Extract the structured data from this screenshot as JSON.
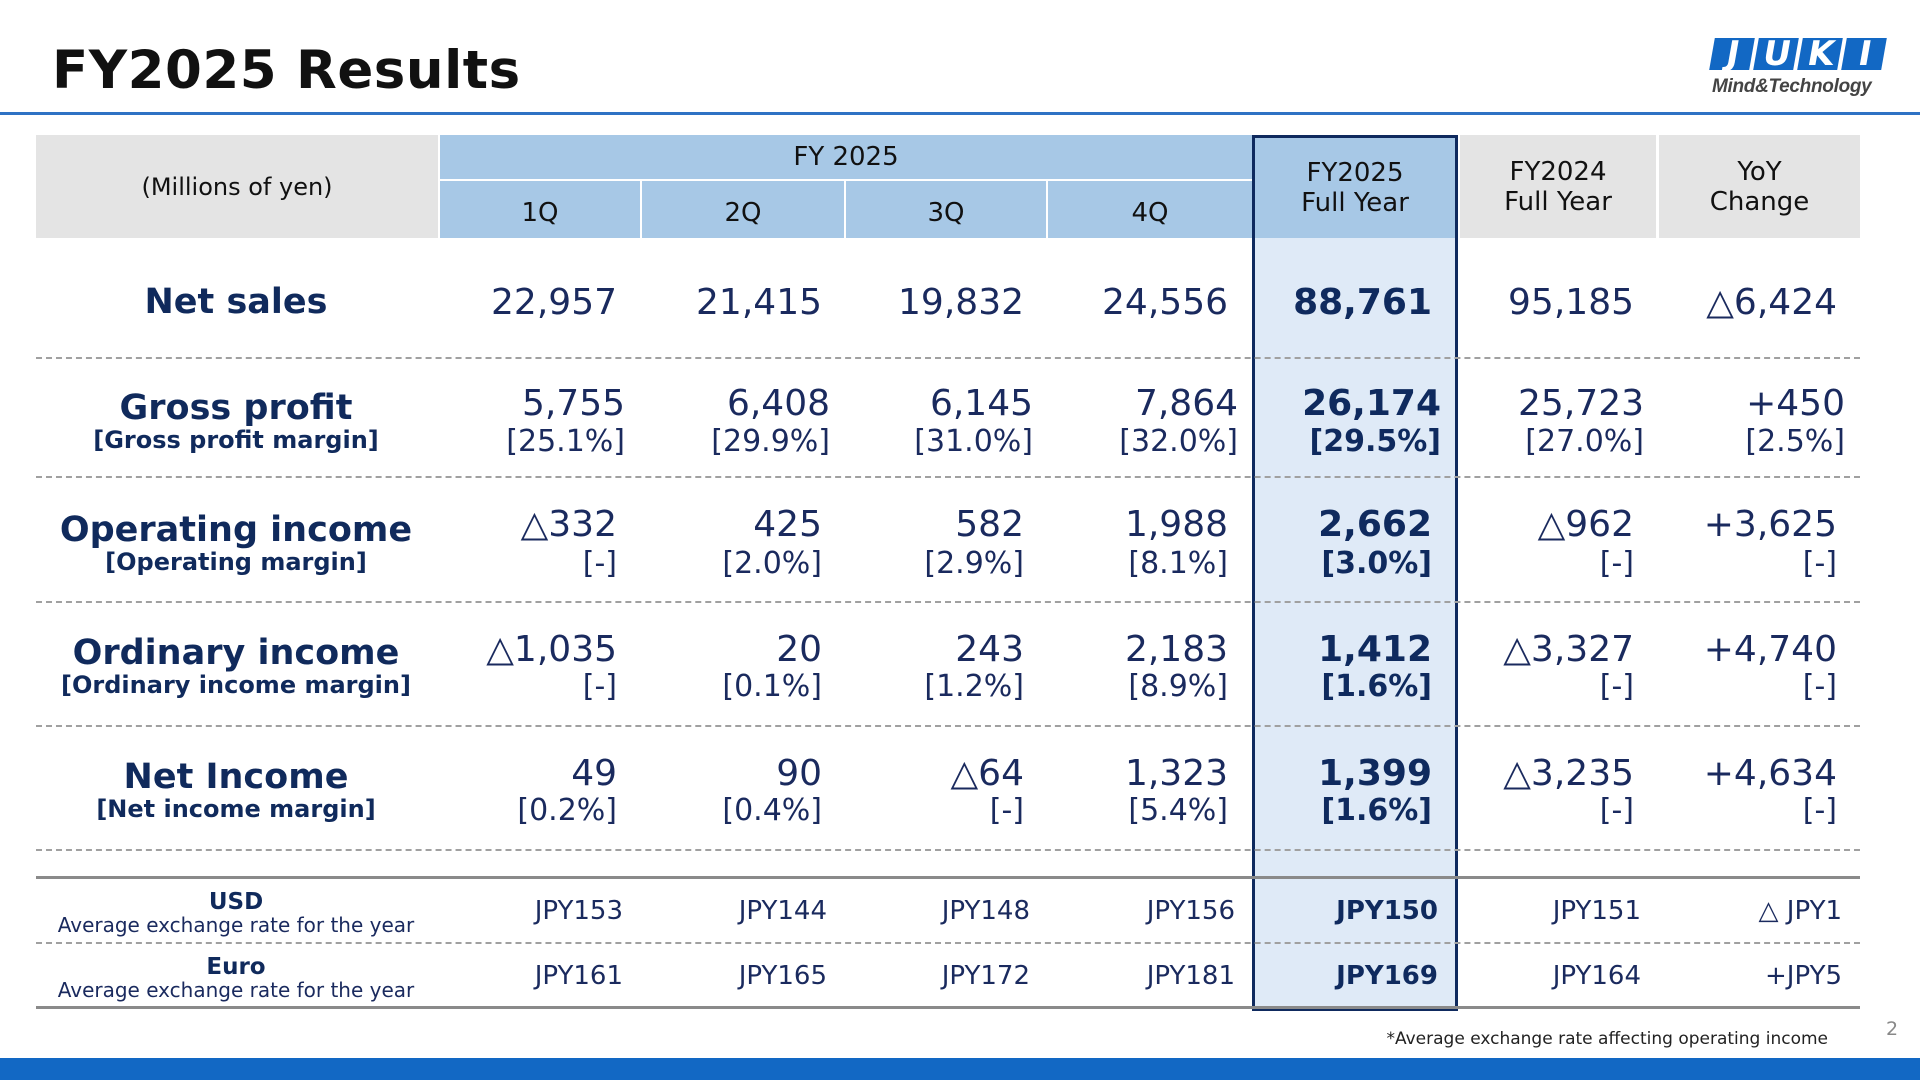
{
  "title": "FY2025 Results",
  "logo": {
    "word": [
      "J",
      "U",
      "K",
      "I"
    ],
    "tagline": "Mind&Technology"
  },
  "header": {
    "unit": "(Millions of yen)",
    "fy_group": "FY 2025",
    "quarters": [
      "1Q",
      "2Q",
      "3Q",
      "4Q"
    ],
    "fy2025_full": [
      "FY2025",
      "Full Year"
    ],
    "fy2024_full": [
      "FY2024",
      "Full Year"
    ],
    "yoy": [
      "YoY",
      "Change"
    ]
  },
  "rows": [
    {
      "label": "Net sales",
      "sub": "",
      "values": [
        "22,957",
        "21,415",
        "19,832",
        "24,556",
        "88,761",
        "95,185",
        "△6,424"
      ],
      "margins": []
    },
    {
      "label": "Gross profit",
      "sub": "[Gross profit margin]",
      "values": [
        "5,755",
        "6,408",
        "6,145",
        "7,864",
        "26,174",
        "25,723",
        "+450"
      ],
      "margins": [
        "[25.1%]",
        "[29.9%]",
        "[31.0%]",
        "[32.0%]",
        "[29.5%]",
        "[27.0%]",
        "[2.5%]"
      ]
    },
    {
      "label": "Operating income",
      "sub": "[Operating margin]",
      "values": [
        "△332",
        "425",
        "582",
        "1,988",
        "2,662",
        "△962",
        "+3,625"
      ],
      "margins": [
        "[-]",
        "[2.0%]",
        "[2.9%]",
        "[8.1%]",
        "[3.0%]",
        "[-]",
        "[-]"
      ]
    },
    {
      "label": "Ordinary income",
      "sub": "[Ordinary income margin]",
      "values": [
        "△1,035",
        "20",
        "243",
        "2,183",
        "1,412",
        "△3,327",
        "+4,740"
      ],
      "margins": [
        "[-]",
        "[0.1%]",
        "[1.2%]",
        "[8.9%]",
        "[1.6%]",
        "[-]",
        "[-]"
      ]
    },
    {
      "label": "Net Income",
      "sub": "[Net income margin]",
      "values": [
        "49",
        "90",
        "△64",
        "1,323",
        "1,399",
        "△3,235",
        "+4,634"
      ],
      "margins": [
        "[0.2%]",
        "[0.4%]",
        "[-]",
        "[5.4%]",
        "[1.6%]",
        "[-]",
        "[-]"
      ]
    }
  ],
  "fx": [
    {
      "label": "USD",
      "sub": "Average exchange rate for the year",
      "values": [
        "JPY153",
        "JPY144",
        "JPY148",
        "JPY156",
        "JPY150",
        "JPY151",
        "△ JPY1"
      ]
    },
    {
      "label": "Euro",
      "sub": "Average exchange rate for the year",
      "values": [
        "JPY161",
        "JPY165",
        "JPY172",
        "JPY181",
        "JPY169",
        "JPY164",
        "+JPY5"
      ]
    }
  ],
  "footnote": "*Average exchange rate affecting operating income",
  "page_number": "2"
}
